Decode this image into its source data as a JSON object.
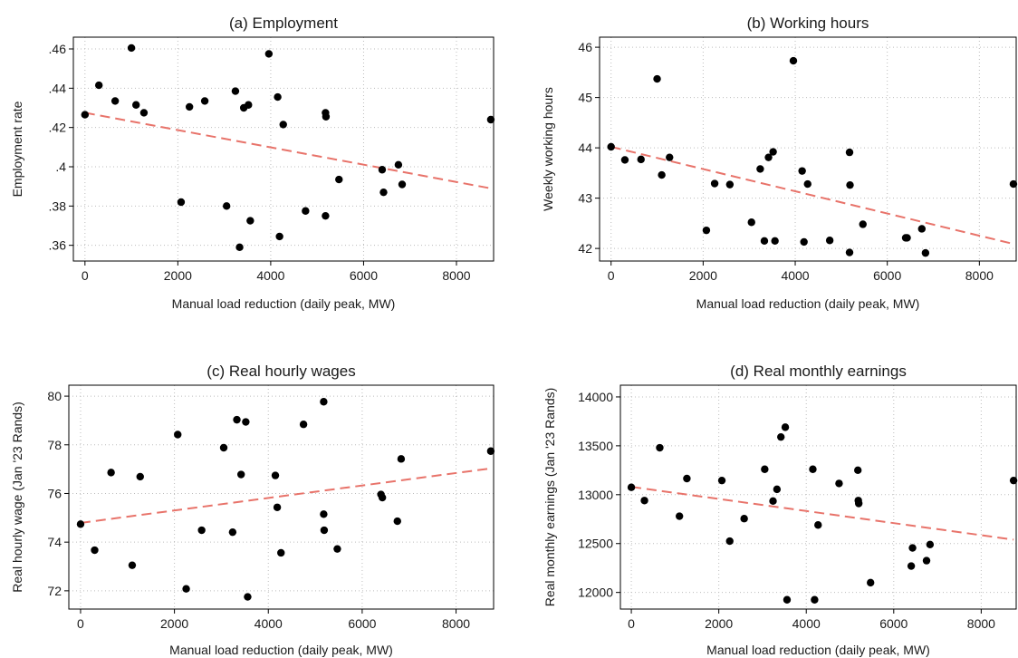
{
  "chart_data": [
    {
      "type": "scatter",
      "title": "(a) Employment",
      "xlabel": "Manual load reduction (daily peak, MW)",
      "ylabel": "Employment rate",
      "xlim": [
        -250,
        8800
      ],
      "ylim": [
        0.352,
        0.466
      ],
      "xticks": [
        0,
        2000,
        4000,
        6000,
        8000
      ],
      "xtick_labels": [
        "0",
        "2000",
        "4000",
        "6000",
        "8000"
      ],
      "yticks": [
        0.36,
        0.38,
        0.4,
        0.42,
        0.44,
        0.46
      ],
      "ytick_labels": [
        ".36",
        ".38",
        ".4",
        ".42",
        ".44",
        ".46"
      ],
      "grid": true,
      "points": [
        {
          "x": 0,
          "y": 0.4265
        },
        {
          "x": 300,
          "y": 0.4415
        },
        {
          "x": 650,
          "y": 0.4335
        },
        {
          "x": 1000,
          "y": 0.4605
        },
        {
          "x": 1100,
          "y": 0.4315
        },
        {
          "x": 1270,
          "y": 0.4275
        },
        {
          "x": 2070,
          "y": 0.382
        },
        {
          "x": 2250,
          "y": 0.4305
        },
        {
          "x": 2580,
          "y": 0.4335
        },
        {
          "x": 3050,
          "y": 0.38
        },
        {
          "x": 3240,
          "y": 0.4385
        },
        {
          "x": 3330,
          "y": 0.359
        },
        {
          "x": 3420,
          "y": 0.43
        },
        {
          "x": 3520,
          "y": 0.4315
        },
        {
          "x": 3560,
          "y": 0.3725
        },
        {
          "x": 3960,
          "y": 0.4575
        },
        {
          "x": 4150,
          "y": 0.4355
        },
        {
          "x": 4190,
          "y": 0.3645
        },
        {
          "x": 4270,
          "y": 0.4215
        },
        {
          "x": 4750,
          "y": 0.3775
        },
        {
          "x": 5180,
          "y": 0.4275
        },
        {
          "x": 5190,
          "y": 0.4255
        },
        {
          "x": 5180,
          "y": 0.375
        },
        {
          "x": 5470,
          "y": 0.3935
        },
        {
          "x": 6400,
          "y": 0.3985
        },
        {
          "x": 6430,
          "y": 0.387
        },
        {
          "x": 6750,
          "y": 0.401
        },
        {
          "x": 6830,
          "y": 0.391
        },
        {
          "x": 8740,
          "y": 0.424
        }
      ],
      "fit_line": {
        "x": [
          0,
          8740
        ],
        "y": [
          0.4275,
          0.389
        ]
      }
    },
    {
      "type": "scatter",
      "title": "(b) Working hours",
      "xlabel": "Manual load reduction (daily peak, MW)",
      "ylabel": "Weekly working hours",
      "xlim": [
        -250,
        8800
      ],
      "ylim": [
        41.75,
        46.2
      ],
      "xticks": [
        0,
        2000,
        4000,
        6000,
        8000
      ],
      "xtick_labels": [
        "0",
        "2000",
        "4000",
        "6000",
        "8000"
      ],
      "yticks": [
        42,
        43,
        44,
        45,
        46
      ],
      "ytick_labels": [
        "42",
        "43",
        "44",
        "45",
        "46"
      ],
      "grid": true,
      "points": [
        {
          "x": 0,
          "y": 44.02
        },
        {
          "x": 300,
          "y": 43.76
        },
        {
          "x": 650,
          "y": 43.77
        },
        {
          "x": 1000,
          "y": 45.37
        },
        {
          "x": 1100,
          "y": 43.46
        },
        {
          "x": 1270,
          "y": 43.81
        },
        {
          "x": 2070,
          "y": 42.36
        },
        {
          "x": 2250,
          "y": 43.29
        },
        {
          "x": 2580,
          "y": 43.27
        },
        {
          "x": 3050,
          "y": 42.52
        },
        {
          "x": 3240,
          "y": 43.58
        },
        {
          "x": 3330,
          "y": 42.15
        },
        {
          "x": 3420,
          "y": 43.81
        },
        {
          "x": 3520,
          "y": 43.92
        },
        {
          "x": 3560,
          "y": 42.15
        },
        {
          "x": 3960,
          "y": 45.73
        },
        {
          "x": 4150,
          "y": 43.54
        },
        {
          "x": 4190,
          "y": 42.13
        },
        {
          "x": 4270,
          "y": 43.28
        },
        {
          "x": 4750,
          "y": 42.16
        },
        {
          "x": 5180,
          "y": 43.91
        },
        {
          "x": 5190,
          "y": 43.26
        },
        {
          "x": 5180,
          "y": 41.92
        },
        {
          "x": 5470,
          "y": 42.48
        },
        {
          "x": 6400,
          "y": 42.21
        },
        {
          "x": 6430,
          "y": 42.21
        },
        {
          "x": 6750,
          "y": 42.39
        },
        {
          "x": 6830,
          "y": 41.91
        },
        {
          "x": 8740,
          "y": 43.28
        }
      ],
      "fit_line": {
        "x": [
          0,
          8740
        ],
        "y": [
          44.02,
          42.09
        ]
      }
    },
    {
      "type": "scatter",
      "title": "(c) Real hourly wages",
      "xlabel": "Manual load reduction (daily peak, MW)",
      "ylabel": "Real hourly wage (Jan '23 Rands)",
      "xlim": [
        -250,
        8800
      ],
      "ylim": [
        71.25,
        80.45
      ],
      "xticks": [
        0,
        2000,
        4000,
        6000,
        8000
      ],
      "xtick_labels": [
        "0",
        "2000",
        "4000",
        "6000",
        "8000"
      ],
      "yticks": [
        72,
        74,
        76,
        78,
        80
      ],
      "ytick_labels": [
        "72",
        "74",
        "76",
        "78",
        "80"
      ],
      "grid": true,
      "points": [
        {
          "x": 0,
          "y": 74.74
        },
        {
          "x": 300,
          "y": 73.67
        },
        {
          "x": 650,
          "y": 76.86
        },
        {
          "x": 1100,
          "y": 73.05
        },
        {
          "x": 1270,
          "y": 76.69
        },
        {
          "x": 2070,
          "y": 78.42
        },
        {
          "x": 2250,
          "y": 72.08
        },
        {
          "x": 2580,
          "y": 74.49
        },
        {
          "x": 3050,
          "y": 77.88
        },
        {
          "x": 3240,
          "y": 74.41
        },
        {
          "x": 3330,
          "y": 79.03
        },
        {
          "x": 3420,
          "y": 76.78
        },
        {
          "x": 3520,
          "y": 78.94
        },
        {
          "x": 3560,
          "y": 71.75
        },
        {
          "x": 4150,
          "y": 76.74
        },
        {
          "x": 4190,
          "y": 75.43
        },
        {
          "x": 4270,
          "y": 73.56
        },
        {
          "x": 4750,
          "y": 78.84
        },
        {
          "x": 5180,
          "y": 75.15
        },
        {
          "x": 5190,
          "y": 74.49
        },
        {
          "x": 5180,
          "y": 79.77
        },
        {
          "x": 5470,
          "y": 73.72
        },
        {
          "x": 6400,
          "y": 75.96
        },
        {
          "x": 6430,
          "y": 75.83
        },
        {
          "x": 6750,
          "y": 74.86
        },
        {
          "x": 6830,
          "y": 77.42
        },
        {
          "x": 8740,
          "y": 77.74
        }
      ],
      "fit_line": {
        "x": [
          0,
          8740
        ],
        "y": [
          74.79,
          77.03
        ]
      }
    },
    {
      "type": "scatter",
      "title": "(d) Real monthly earnings",
      "xlabel": "Manual load reduction (daily peak, MW)",
      "ylabel": "Real monthly earnings (Jan '23 Rands)",
      "xlim": [
        -250,
        8800
      ],
      "ylim": [
        11830,
        14120
      ],
      "xticks": [
        0,
        2000,
        4000,
        6000,
        8000
      ],
      "xtick_labels": [
        "0",
        "2000",
        "4000",
        "6000",
        "8000"
      ],
      "yticks": [
        12000,
        12500,
        13000,
        13500,
        14000
      ],
      "ytick_labels": [
        "12000",
        "12500",
        "13000",
        "13500",
        "14000"
      ],
      "grid": true,
      "points": [
        {
          "x": 0,
          "y": 13075
        },
        {
          "x": 300,
          "y": 12940
        },
        {
          "x": 650,
          "y": 13480
        },
        {
          "x": 1100,
          "y": 12780
        },
        {
          "x": 1270,
          "y": 13165
        },
        {
          "x": 2070,
          "y": 13145
        },
        {
          "x": 2250,
          "y": 12525
        },
        {
          "x": 2580,
          "y": 12755
        },
        {
          "x": 3050,
          "y": 13260
        },
        {
          "x": 3240,
          "y": 12935
        },
        {
          "x": 3330,
          "y": 13055
        },
        {
          "x": 3420,
          "y": 13590
        },
        {
          "x": 3520,
          "y": 13690
        },
        {
          "x": 3560,
          "y": 11925
        },
        {
          "x": 4150,
          "y": 13260
        },
        {
          "x": 4190,
          "y": 11925
        },
        {
          "x": 4270,
          "y": 12690
        },
        {
          "x": 4750,
          "y": 13115
        },
        {
          "x": 5180,
          "y": 13250
        },
        {
          "x": 5190,
          "y": 12940
        },
        {
          "x": 5200,
          "y": 12910
        },
        {
          "x": 5470,
          "y": 12100
        },
        {
          "x": 6400,
          "y": 12270
        },
        {
          "x": 6430,
          "y": 12455
        },
        {
          "x": 6750,
          "y": 12325
        },
        {
          "x": 6830,
          "y": 12490
        },
        {
          "x": 8740,
          "y": 13145
        }
      ],
      "fit_line": {
        "x": [
          0,
          8740
        ],
        "y": [
          13080,
          12540
        ]
      }
    }
  ]
}
